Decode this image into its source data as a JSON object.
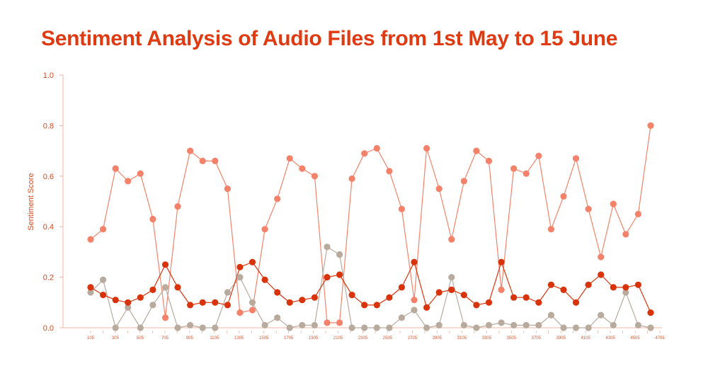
{
  "chart_data": {
    "type": "line",
    "title": "Sentiment Analysis of Audio Files from 1st May to 15 June",
    "xlabel": "",
    "ylabel": "Sentiment Score",
    "ylim": [
      0,
      1
    ],
    "yticks": [
      "0.0",
      "0.2",
      "0.4",
      "0.6",
      "0.8",
      "1.0"
    ],
    "xtick_labels": [
      "105",
      "305",
      "505",
      "705",
      "905",
      "1105",
      "1305",
      "1505",
      "1705",
      "1905",
      "2105",
      "2305",
      "2505",
      "2705",
      "2905",
      "3105",
      "3305",
      "3505",
      "3705",
      "3905",
      "4105",
      "4305",
      "4505",
      "4705"
    ],
    "grid": false,
    "legend": false,
    "series": [
      {
        "color": "#f4826a",
        "values": [
          0.35,
          0.39,
          0.63,
          0.58,
          0.61,
          0.43,
          0.04,
          0.48,
          0.7,
          0.66,
          0.66,
          0.55,
          0.06,
          0.07,
          0.39,
          0.51,
          0.67,
          0.63,
          0.6,
          0.02,
          0.02,
          0.59,
          0.69,
          0.71,
          0.62,
          0.47,
          0.11,
          0.71,
          0.55,
          0.35,
          0.58,
          0.7,
          0.66,
          0.15,
          0.63,
          0.61,
          0.68,
          0.39,
          0.52,
          0.67,
          0.47,
          0.28,
          0.49,
          0.37,
          0.45,
          0.8
        ]
      },
      {
        "color": "#b8ab9e",
        "values": [
          0.14,
          0.19,
          0.0,
          0.08,
          0.0,
          0.09,
          0.16,
          0.0,
          0.01,
          0.0,
          0.0,
          0.14,
          0.2,
          0.1,
          0.01,
          0.04,
          0.0,
          0.01,
          0.01,
          0.32,
          0.29,
          0.0,
          0.0,
          0.0,
          0.0,
          0.04,
          0.07,
          0.0,
          0.01,
          0.2,
          0.01,
          0.0,
          0.01,
          0.02,
          0.01,
          0.01,
          0.01,
          0.05,
          0.0,
          0.0,
          0.0,
          0.05,
          0.01,
          0.14,
          0.01,
          0.0
        ]
      },
      {
        "color": "#d9330b",
        "values": [
          0.16,
          0.13,
          0.11,
          0.1,
          0.12,
          0.15,
          0.25,
          0.16,
          0.09,
          0.1,
          0.1,
          0.09,
          0.24,
          0.26,
          0.19,
          0.14,
          0.1,
          0.11,
          0.12,
          0.2,
          0.21,
          0.13,
          0.09,
          0.09,
          0.12,
          0.16,
          0.26,
          0.08,
          0.14,
          0.15,
          0.13,
          0.09,
          0.1,
          0.26,
          0.12,
          0.12,
          0.1,
          0.17,
          0.15,
          0.1,
          0.17,
          0.21,
          0.16,
          0.16,
          0.17,
          0.06
        ]
      }
    ]
  }
}
